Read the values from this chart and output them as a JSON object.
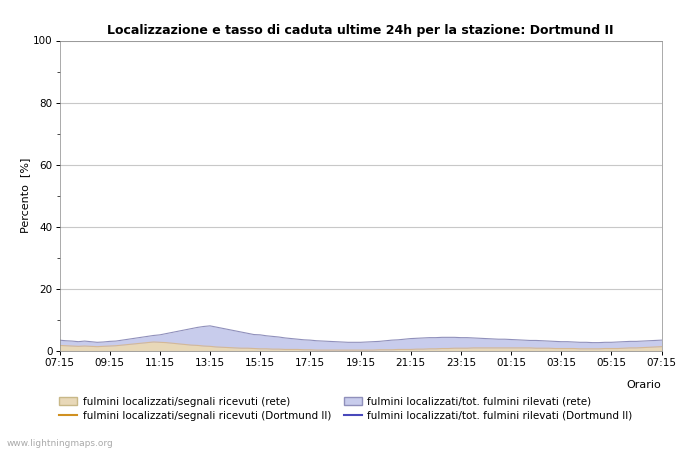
{
  "title": "Localizzazione e tasso di caduta ultime 24h per la stazione: Dortmund II",
  "xlabel": "Orario",
  "ylabel": "Percento  [%]",
  "ylim": [
    0,
    100
  ],
  "yticks": [
    0,
    20,
    40,
    60,
    80,
    100
  ],
  "yticks_minor": [
    10,
    30,
    50,
    70,
    90
  ],
  "x_labels": [
    "07:15",
    "09:15",
    "11:15",
    "13:15",
    "15:15",
    "17:15",
    "19:15",
    "21:15",
    "23:15",
    "01:15",
    "03:15",
    "05:15",
    "07:15"
  ],
  "bg_color": "#ffffff",
  "grid_color": "#c8c8c8",
  "fill_rete_color": "#e8d8b8",
  "fill_rete_edge": "#d4b896",
  "fill_blue_color": "#c8ccec",
  "fill_blue_edge": "#9090bb",
  "line_orange_color": "#d09020",
  "line_blue_color": "#4848bb",
  "watermark": "www.lightningmaps.org",
  "legend": [
    {
      "label": "fulmini localizzati/segnali ricevuti (rete)",
      "type": "fill",
      "color": "#e8d8b8",
      "edge": "#c8b888"
    },
    {
      "label": "fulmini localizzati/segnali ricevuti (Dortmund II)",
      "type": "line",
      "color": "#d09020"
    },
    {
      "label": "fulmini localizzati/tot. fulmini rilevati (rete)",
      "type": "fill",
      "color": "#c8ccec",
      "edge": "#9090bb"
    },
    {
      "label": "fulmini localizzati/tot. fulmini rilevati (Dortmund II)",
      "type": "line",
      "color": "#4848bb"
    }
  ],
  "n_points": 97,
  "data_fill_rete": [
    1.8,
    1.7,
    1.6,
    1.5,
    1.6,
    1.5,
    1.4,
    1.5,
    1.6,
    1.7,
    1.9,
    2.1,
    2.3,
    2.5,
    2.7,
    2.9,
    2.8,
    2.7,
    2.5,
    2.3,
    2.1,
    1.9,
    1.8,
    1.6,
    1.5,
    1.3,
    1.2,
    1.1,
    1.0,
    0.9,
    0.9,
    0.8,
    0.7,
    0.7,
    0.6,
    0.6,
    0.5,
    0.5,
    0.5,
    0.4,
    0.4,
    0.3,
    0.3,
    0.3,
    0.3,
    0.3,
    0.3,
    0.3,
    0.3,
    0.3,
    0.3,
    0.4,
    0.4,
    0.4,
    0.5,
    0.5,
    0.5,
    0.6,
    0.6,
    0.7,
    0.7,
    0.8,
    0.8,
    0.9,
    0.9,
    0.9,
    1.0,
    1.0,
    1.0,
    1.0,
    1.0,
    1.0,
    1.0,
    1.0,
    1.0,
    1.0,
    0.9,
    0.9,
    0.9,
    0.8,
    0.8,
    0.8,
    0.8,
    0.7,
    0.7,
    0.7,
    0.7,
    0.8,
    0.8,
    0.8,
    0.9,
    1.0,
    1.0,
    1.1,
    1.2,
    1.3,
    1.4
  ],
  "data_fill_blue": [
    3.5,
    3.3,
    3.2,
    3.0,
    3.2,
    3.0,
    2.8,
    2.9,
    3.1,
    3.2,
    3.5,
    3.8,
    4.1,
    4.4,
    4.7,
    5.0,
    5.2,
    5.6,
    6.0,
    6.4,
    6.8,
    7.2,
    7.6,
    7.9,
    8.1,
    7.7,
    7.3,
    6.9,
    6.5,
    6.1,
    5.7,
    5.3,
    5.2,
    4.9,
    4.7,
    4.5,
    4.2,
    4.0,
    3.8,
    3.6,
    3.5,
    3.3,
    3.2,
    3.1,
    3.0,
    2.9,
    2.8,
    2.8,
    2.8,
    2.9,
    3.0,
    3.1,
    3.3,
    3.5,
    3.6,
    3.8,
    4.0,
    4.1,
    4.2,
    4.3,
    4.3,
    4.4,
    4.4,
    4.4,
    4.3,
    4.3,
    4.2,
    4.1,
    4.0,
    3.9,
    3.8,
    3.8,
    3.7,
    3.6,
    3.5,
    3.4,
    3.4,
    3.3,
    3.2,
    3.1,
    3.0,
    3.0,
    2.9,
    2.8,
    2.8,
    2.7,
    2.7,
    2.8,
    2.8,
    2.9,
    3.0,
    3.1,
    3.1,
    3.2,
    3.3,
    3.4,
    3.5
  ]
}
